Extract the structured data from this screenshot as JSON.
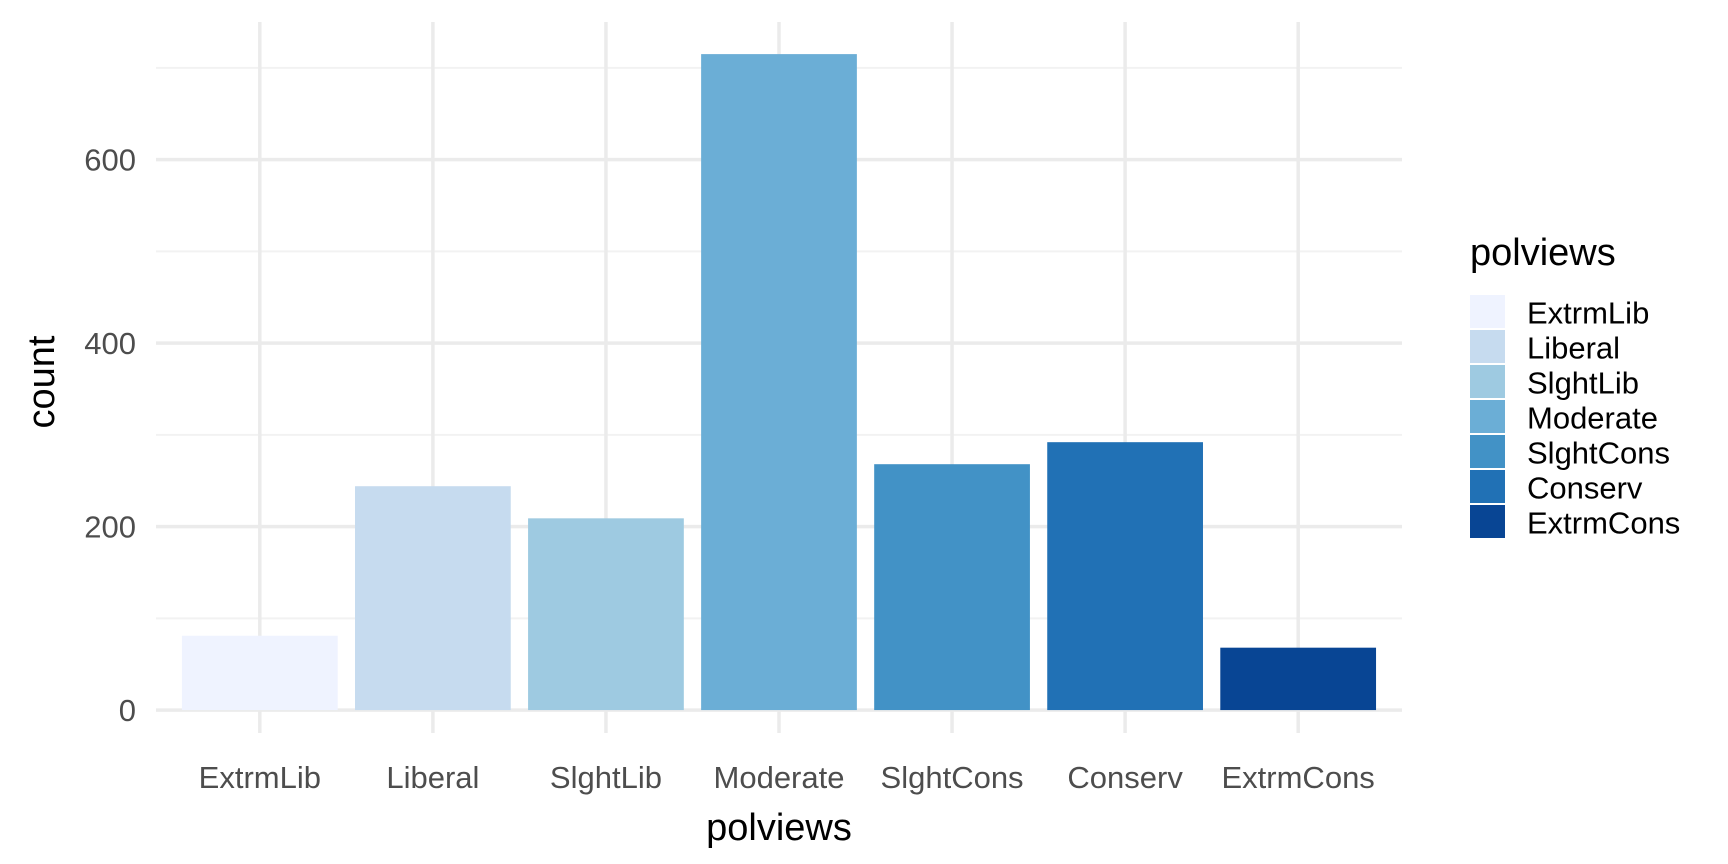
{
  "chart_data": {
    "type": "bar",
    "categories": [
      "ExtrmLib",
      "Liberal",
      "SlghtLib",
      "Moderate",
      "SlghtCons",
      "Conserv",
      "ExtrmCons"
    ],
    "values": [
      81,
      244,
      209,
      715,
      268,
      292,
      68
    ],
    "colors": [
      "#eff3ff",
      "#c6dbef",
      "#9ecae1",
      "#6baed6",
      "#4292c6",
      "#2171b5",
      "#084594"
    ],
    "xlabel": "polviews",
    "ylabel": "count",
    "ylim": [
      -25,
      750
    ],
    "yticks": [
      0,
      200,
      400,
      600
    ],
    "grid": true,
    "legend": {
      "title": "polviews",
      "position": "right",
      "items": [
        "ExtrmLib",
        "Liberal",
        "SlghtLib",
        "Moderate",
        "SlghtCons",
        "Conserv",
        "ExtrmCons"
      ]
    }
  }
}
